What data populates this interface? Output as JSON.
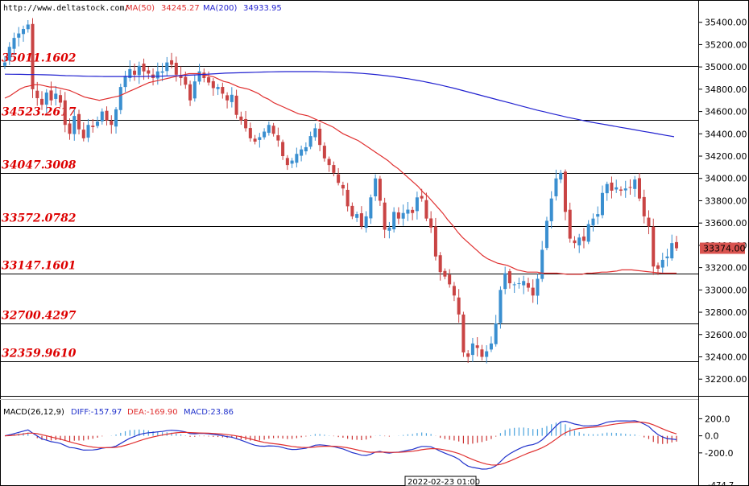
{
  "header": {
    "url": "http://www.deltastock.com/",
    "ma50_label": "MA(50)",
    "ma50_value": "34245.27",
    "ma200_label": "MA(200)",
    "ma200_value": "34933.95"
  },
  "colors": {
    "up": "#3a8fd0",
    "down": "#c94444",
    "ma50": "#e03030",
    "ma200": "#2222d0",
    "level_text": "#dd0000",
    "price_tag_bg": "#d9534f",
    "diff": "#2233cc",
    "dea": "#e03030",
    "macd_pos": "#4aa3dd",
    "macd_neg": "#cc3333"
  },
  "price_tag": "33374.00",
  "date_label": "2022-02-23 01:00",
  "macd_header": {
    "name": "MACD(26,12,9)",
    "diff": "DIFF:-157.97",
    "dea": "DEA:-169.90",
    "macd": "MACD:23.86"
  },
  "chart_data": [
    {
      "type": "candlestick",
      "title": "",
      "ylim": [
        32050,
        35600
      ],
      "yticks": [
        "35400.00",
        "35200.00",
        "35000.00",
        "34800.00",
        "34600.00",
        "34400.00",
        "34200.00",
        "34000.00",
        "33800.00",
        "33600.00",
        "33400.00",
        "33200.00",
        "33000.00",
        "32800.00",
        "32600.00",
        "32400.00",
        "32200.00"
      ],
      "ytick_values": [
        35400,
        35200,
        35000,
        34800,
        34600,
        34400,
        34200,
        34000,
        33800,
        33600,
        33400,
        33200,
        33000,
        32800,
        32600,
        32400,
        32200
      ],
      "levels": [
        {
          "label": "35011.1602",
          "value": 35011.16
        },
        {
          "label": "34523.2617",
          "value": 34523.26
        },
        {
          "label": "34047.3008",
          "value": 34047.3
        },
        {
          "label": "33572.0782",
          "value": 33572.08
        },
        {
          "label": "33147.1601",
          "value": 33147.16
        },
        {
          "label": "32700.4297",
          "value": 32700.43
        },
        {
          "label": "32359.9610",
          "value": 32359.96
        }
      ],
      "last_price": 33374.0,
      "closes": [
        35040,
        35180,
        35260,
        35300,
        35340,
        35380,
        34800,
        34720,
        34660,
        34770,
        34700,
        34760,
        34680,
        34480,
        34400,
        34560,
        34440,
        34360,
        34480,
        34460,
        34510,
        34600,
        34520,
        34480,
        34620,
        34820,
        34920,
        34980,
        34930,
        35010,
        34960,
        34940,
        34900,
        34960,
        34960,
        35040,
        35020,
        34930,
        34900,
        34840,
        34700,
        34870,
        34960,
        34900,
        34860,
        34810,
        34820,
        34760,
        34700,
        34750,
        34570,
        34520,
        34450,
        34360,
        34330,
        34370,
        34420,
        34480,
        34400,
        34340,
        34200,
        34120,
        34160,
        34220,
        34260,
        34280,
        34380,
        34450,
        34300,
        34180,
        34120,
        34050,
        33960,
        33910,
        33750,
        33660,
        33680,
        33570,
        33660,
        33830,
        34000,
        33800,
        33540,
        33560,
        33700,
        33640,
        33690,
        33720,
        33690,
        33830,
        33820,
        33640,
        33560,
        33300,
        33160,
        33120,
        33050,
        32950,
        32780,
        32440,
        32400,
        32520,
        32480,
        32400,
        32450,
        32520,
        32700,
        33000,
        33150,
        33060,
        33050,
        33060,
        33080,
        33020,
        32950,
        33100,
        33360,
        33620,
        33820,
        34000,
        34050,
        33700,
        33460,
        33420,
        33470,
        33440,
        33590,
        33640,
        33680,
        33870,
        33950,
        33890,
        33920,
        33890,
        33910,
        33920,
        33990,
        33820,
        33660,
        33570,
        33210,
        33190,
        33270,
        33300,
        33420,
        33374
      ],
      "ma50": [
        34720,
        34740,
        34770,
        34800,
        34820,
        34830,
        34840,
        34840,
        34830,
        34820,
        34820,
        34810,
        34800,
        34790,
        34770,
        34750,
        34730,
        34720,
        34710,
        34700,
        34710,
        34720,
        34730,
        34740,
        34760,
        34780,
        34800,
        34820,
        34840,
        34860,
        34870,
        34880,
        34890,
        34900,
        34910,
        34920,
        34930,
        34940,
        34940,
        34940,
        34930,
        34920,
        34910,
        34890,
        34870,
        34860,
        34840,
        34820,
        34810,
        34800,
        34780,
        34760,
        34730,
        34710,
        34680,
        34660,
        34640,
        34620,
        34600,
        34580,
        34570,
        34560,
        34540,
        34520,
        34500,
        34480,
        34460,
        34430,
        34400,
        34380,
        34360,
        34340,
        34310,
        34280,
        34250,
        34220,
        34190,
        34160,
        34120,
        34090,
        34050,
        34010,
        33970,
        33930,
        33880,
        33840,
        33790,
        33740,
        33690,
        33630,
        33580,
        33520,
        33470,
        33430,
        33390,
        33350,
        33310,
        33280,
        33260,
        33240,
        33230,
        33220,
        33200,
        33180,
        33170,
        33160,
        33160,
        33160,
        33150,
        33150,
        33150,
        33150,
        33145,
        33140,
        33140,
        33140,
        33140,
        33150,
        33150,
        33155,
        33160,
        33160,
        33165,
        33170,
        33180,
        33180,
        33180,
        33175,
        33170,
        33165,
        33160,
        33155,
        33150,
        33150,
        33150,
        33150
      ],
      "ma200": [
        34935,
        34934,
        34933,
        34932,
        34931,
        34930,
        34928,
        34925,
        34922,
        34920,
        34918,
        34916,
        34915,
        34914,
        34914,
        34914,
        34914,
        34914,
        34914,
        34915,
        34916,
        34918,
        34920,
        34922,
        34925,
        34928,
        34932,
        34936,
        34940,
        34944,
        34946,
        34948,
        34950,
        34952,
        34954,
        34956,
        34957,
        34958,
        34958,
        34958,
        34958,
        34958,
        34956,
        34954,
        34952,
        34950,
        34946,
        34942,
        34936,
        34930,
        34922,
        34914,
        34904,
        34894,
        34882,
        34870,
        34856,
        34842,
        34826,
        34810,
        34792,
        34774,
        34756,
        34738,
        34720,
        34702,
        34684,
        34666,
        34648,
        34630,
        34612,
        34596,
        34580,
        34564,
        34548,
        34534,
        34520,
        34506,
        34494,
        34482,
        34470,
        34458,
        34446,
        34434,
        34422,
        34410,
        34398,
        34386,
        34374
      ],
      "ma200_start_index": 0,
      "ma200_scale": 0.615
    },
    {
      "type": "bar",
      "title": "MACD(26,12,9)",
      "ylim": [
        -474.7,
        430
      ],
      "yticks": [
        "200.0",
        "0.0",
        "-200.0"
      ],
      "ytick_values": [
        200,
        0,
        -200
      ],
      "bottom_tick_label": "-474.7"
    }
  ]
}
